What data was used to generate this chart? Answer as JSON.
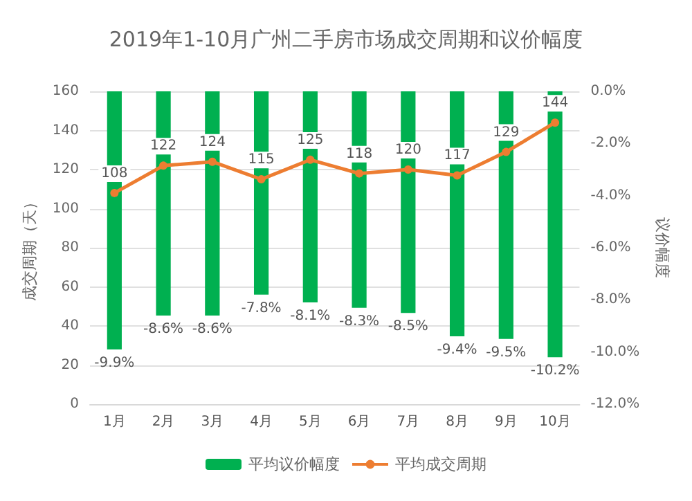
{
  "chart_data": {
    "type": "bar",
    "title": "2019年1-10月广州二手房市场成交周期和议价幅度",
    "ylabel": "成交周期（天）",
    "y2label": "议价幅度",
    "categories": [
      "1月",
      "2月",
      "3月",
      "4月",
      "5月",
      "6月",
      "7月",
      "8月",
      "9月",
      "10月"
    ],
    "series": [
      {
        "name": "平均议价幅度",
        "axis": "y2",
        "color": "#00b050",
        "values": [
          -9.9,
          -8.6,
          -8.6,
          -7.8,
          -8.1,
          -8.3,
          -8.5,
          -9.4,
          -9.5,
          -10.2
        ],
        "value_labels": [
          "-9.9%",
          "-8.6%",
          "-8.6%",
          "-7.8%",
          "-8.1%",
          "-8.3%",
          "-8.5%",
          "-9.4%",
          "-9.5%",
          "-10.2%"
        ]
      },
      {
        "name": "平均成交周期",
        "type": "line",
        "axis": "y",
        "color": "#ed7d31",
        "marker": "circle",
        "values": [
          108,
          122,
          124,
          115,
          125,
          118,
          120,
          117,
          129,
          144
        ],
        "value_labels": [
          "108",
          "122",
          "124",
          "115",
          "125",
          "118",
          "120",
          "117",
          "129",
          "144"
        ]
      }
    ],
    "ylim": [
      0,
      160
    ],
    "yticks": [
      0,
      20,
      40,
      60,
      80,
      100,
      120,
      140,
      160
    ],
    "y2lim": [
      -12,
      0
    ],
    "y2ticks": [
      {
        "value": -12,
        "label": "-12.0%"
      },
      {
        "value": -10,
        "label": "-10.0%"
      },
      {
        "value": -8,
        "label": "-8.0%"
      },
      {
        "value": -6,
        "label": "-6.0%"
      },
      {
        "value": -4,
        "label": "-4.0%"
      },
      {
        "value": -2,
        "label": "-2.0%"
      },
      {
        "value": 0,
        "label": "0.0%"
      }
    ],
    "grid": "y",
    "legend": "bottom"
  }
}
